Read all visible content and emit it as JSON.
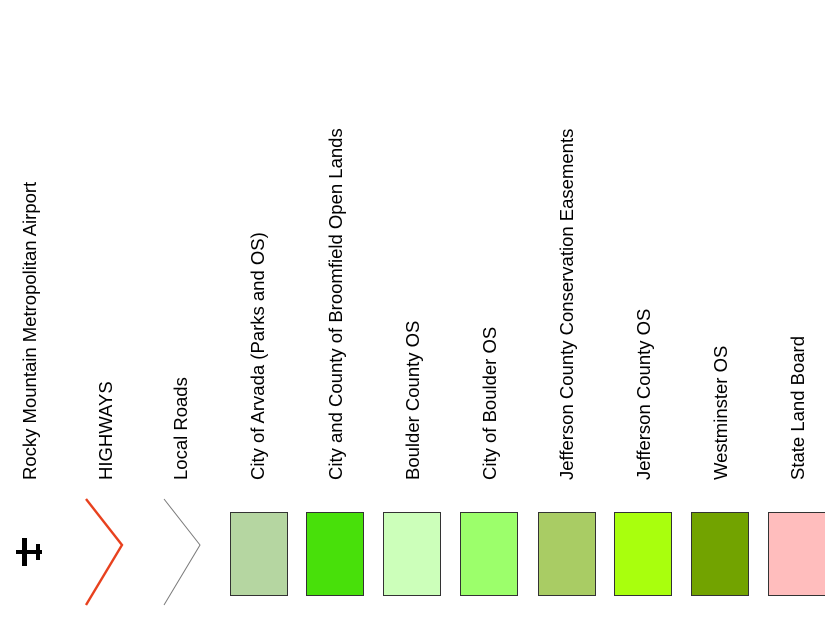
{
  "legend": {
    "items": [
      {
        "label": "Rocky Mountain Metropolitan Airport",
        "symbol": "airplane-icon",
        "color": "#000000"
      },
      {
        "label": "HIGHWAYS",
        "symbol": "line",
        "color": "#e8411e"
      },
      {
        "label": "Local Roads",
        "symbol": "line",
        "color": "#7a7a7a"
      },
      {
        "label": "City of Arvada (Parks and OS)",
        "symbol": "fill",
        "color": "#b5d6a1"
      },
      {
        "label": "City and County of Broomfield Open Lands",
        "symbol": "fill",
        "color": "#48e00a"
      },
      {
        "label": "Boulder County OS",
        "symbol": "fill",
        "color": "#ccffba"
      },
      {
        "label": "City of Boulder OS",
        "symbol": "fill",
        "color": "#9cff6b"
      },
      {
        "label": "Jefferson County Conservation Easements",
        "symbol": "fill",
        "color": "#a9cc64"
      },
      {
        "label": "Jefferson County OS",
        "symbol": "fill",
        "color": "#a9ff0d"
      },
      {
        "label": "Westminster OS",
        "symbol": "fill",
        "color": "#72a300"
      },
      {
        "label": "State Land Board",
        "symbol": "fill",
        "color": "#ffbdbd"
      }
    ]
  }
}
